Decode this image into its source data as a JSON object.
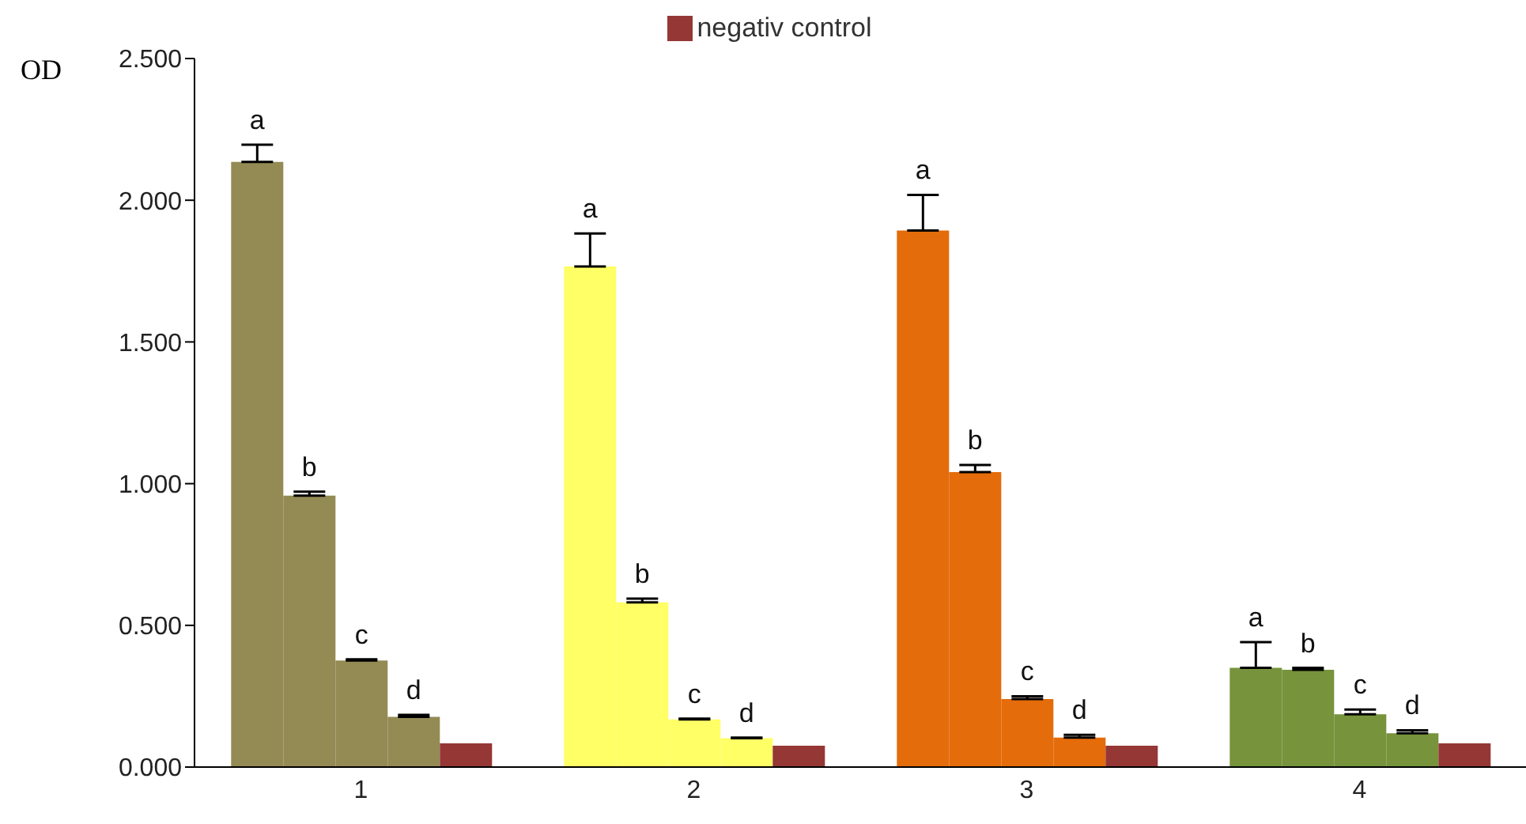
{
  "chart_data": {
    "type": "bar",
    "ylabel": "OD",
    "categories": [
      "1",
      "2",
      "3",
      "4"
    ],
    "series": [
      {
        "colors": [
          "#948a54",
          "#ffff66",
          "#e46c0a",
          "#77933c"
        ],
        "values": [
          2.135,
          1.766,
          1.893,
          0.35
        ],
        "errors": [
          [
            2.135,
            2.196
          ],
          [
            1.766,
            1.883
          ],
          [
            1.893,
            2.019
          ],
          [
            0.35,
            0.441
          ]
        ],
        "value_labels": [
          "a",
          "a",
          "a",
          "a"
        ]
      },
      {
        "colors": [
          "#948a54",
          "#ffff66",
          "#e46c0a",
          "#77933c"
        ],
        "values": [
          0.958,
          0.581,
          1.041,
          0.343
        ],
        "errors": [
          [
            0.958,
            0.972
          ],
          [
            0.581,
            0.594
          ],
          [
            1.041,
            1.066
          ],
          [
            0.343,
            0.35
          ]
        ],
        "value_labels": [
          "b",
          "b",
          "b",
          "b"
        ]
      },
      {
        "colors": [
          "#948a54",
          "#ffff66",
          "#e46c0a",
          "#77933c"
        ],
        "values": [
          0.376,
          0.168,
          0.24,
          0.186
        ],
        "errors": [
          [
            0.376,
            0.38
          ],
          [
            0.168,
            0.171
          ],
          [
            0.24,
            0.25
          ],
          [
            0.186,
            0.203
          ]
        ],
        "value_labels": [
          "c",
          "c",
          "c",
          "c"
        ]
      },
      {
        "colors": [
          "#948a54",
          "#ffff66",
          "#e46c0a",
          "#77933c"
        ],
        "values": [
          0.177,
          0.102,
          0.104,
          0.119
        ],
        "errors": [
          [
            0.177,
            0.184
          ],
          [
            0.102,
            0.104
          ],
          [
            0.104,
            0.114
          ],
          [
            0.119,
            0.13
          ]
        ],
        "value_labels": [
          "d",
          "d",
          "d",
          "d"
        ]
      },
      {
        "name": "negativ control",
        "color": "#953735",
        "values": [
          0.084,
          0.075,
          0.075,
          0.084
        ]
      }
    ],
    "ylim": [
      0,
      2.5
    ],
    "yticks": [
      {
        "value": 0,
        "label": "0.000"
      },
      {
        "value": 0.5,
        "label": "0.500"
      },
      {
        "value": 1,
        "label": "1.000"
      },
      {
        "value": 1.5,
        "label": "1.500"
      },
      {
        "value": 2,
        "label": "2.000"
      },
      {
        "value": 2.5,
        "label": "2.500"
      }
    ],
    "grid": false,
    "legend": "top"
  }
}
